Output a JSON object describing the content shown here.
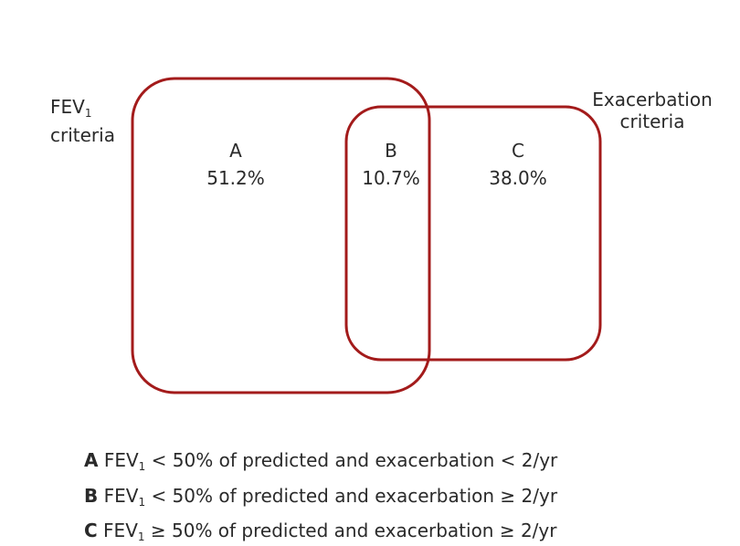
{
  "sets": {
    "fev1": {
      "label_main": "FEV",
      "label_sub": "1",
      "label_line2": "criteria"
    },
    "exacerbation": {
      "label_line1": "Exacerbation",
      "label_line2": "criteria"
    }
  },
  "regions": [
    {
      "letter": "A",
      "percent": "51.2%"
    },
    {
      "letter": "B",
      "percent": "10.7%"
    },
    {
      "letter": "C",
      "percent": "38.0%"
    }
  ],
  "legend": [
    {
      "letter": "A",
      "fev": "FEV",
      "sub": "1",
      "text": "< 50% of predicted and exacerbation < 2/yr"
    },
    {
      "letter": "B",
      "fev": "FEV",
      "sub": "1",
      "text": "< 50% of predicted and exacerbation ≥ 2/yr"
    },
    {
      "letter": "C",
      "fev": "FEV",
      "sub": "1",
      "text": "≥ 50% of predicted and exacerbation ≥ 2/yr"
    }
  ],
  "colors": {
    "outline": "#a31b1b"
  }
}
